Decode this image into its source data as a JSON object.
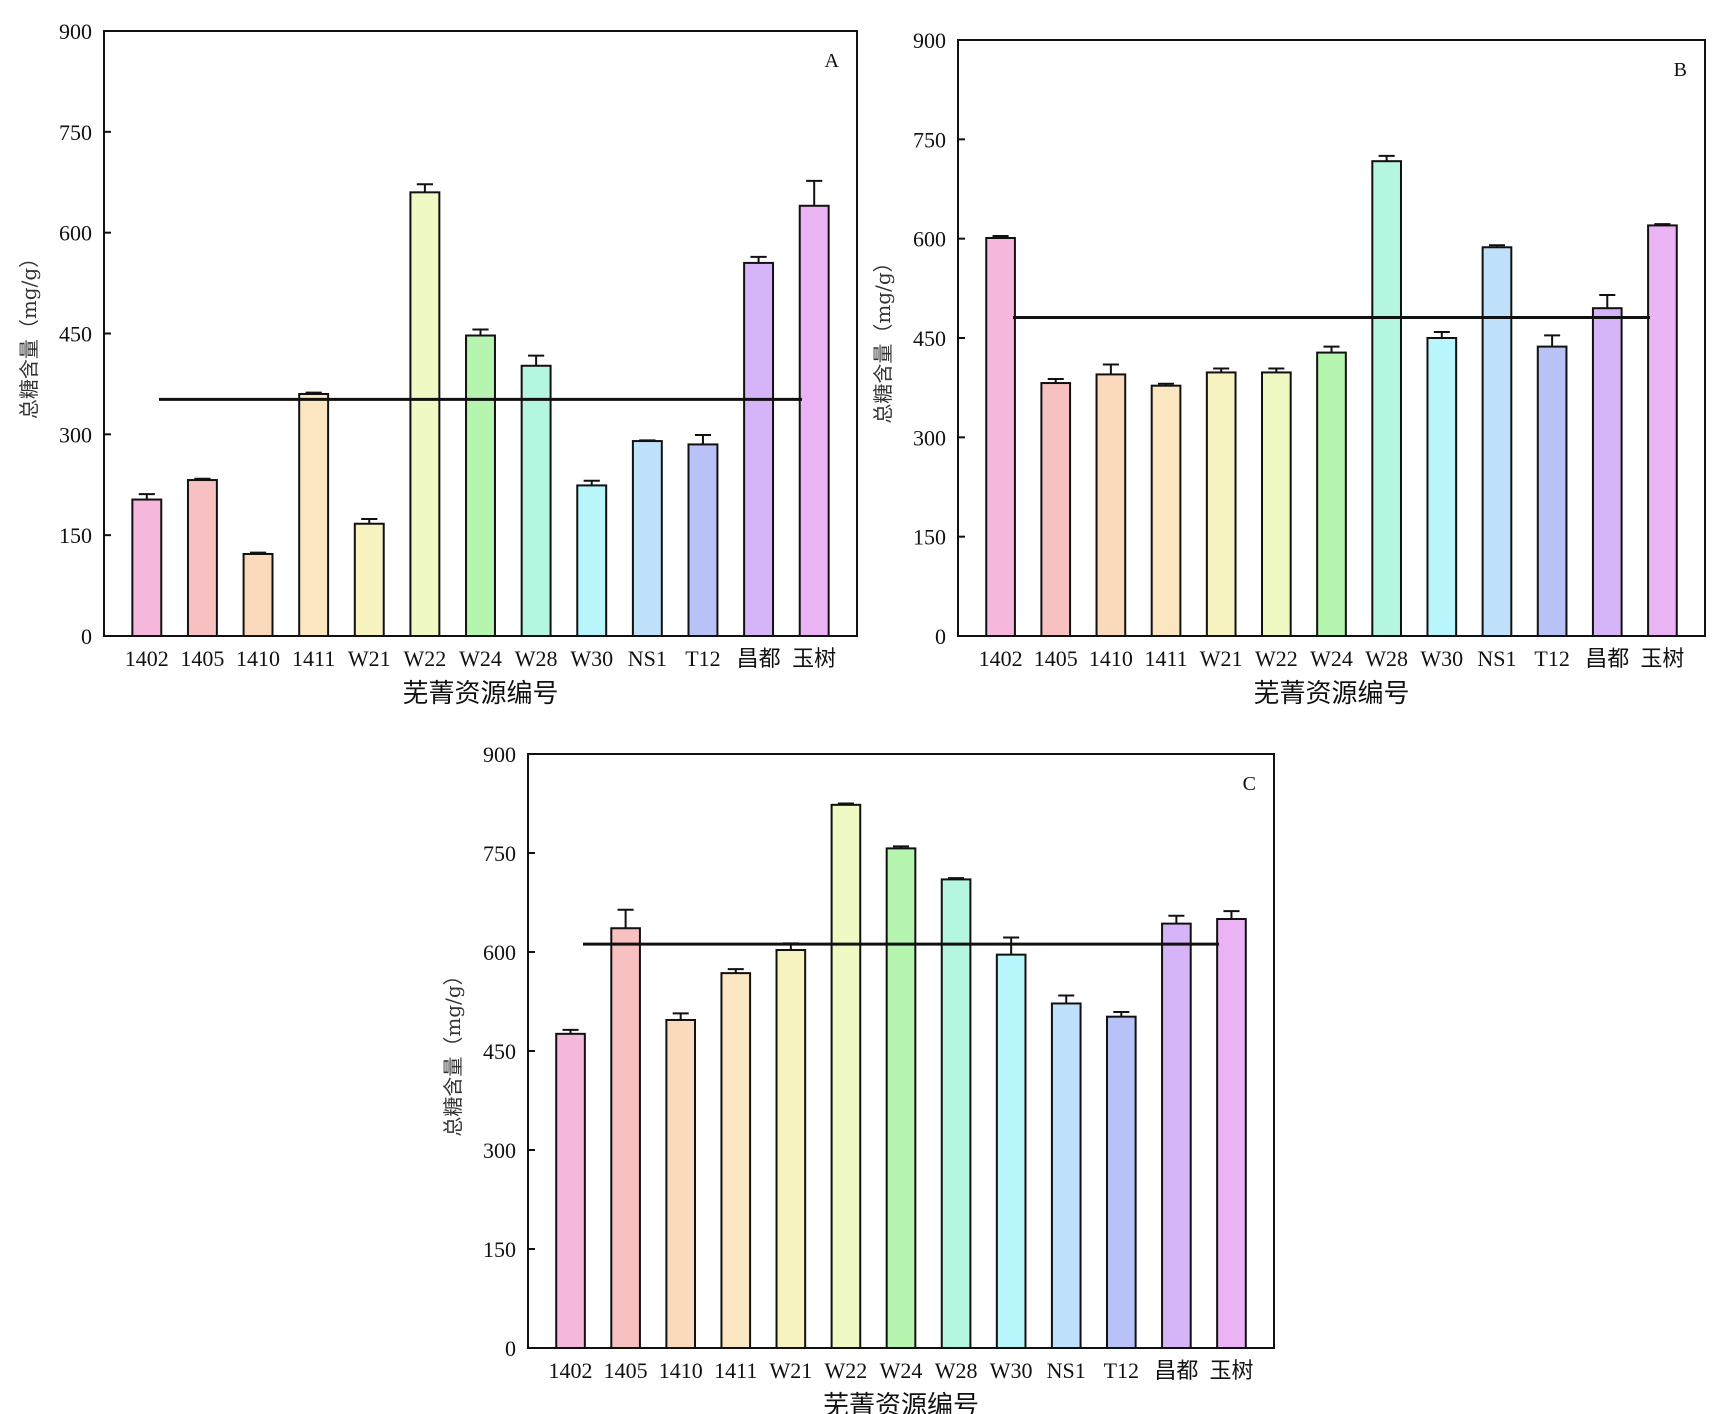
{
  "chart_data": [
    {
      "type": "bar",
      "panel": "A",
      "ylabel": "总糖含量（mg/g）",
      "xlabel": "芜菁资源编号",
      "ylim": [
        0,
        900
      ],
      "yticks": [
        "0",
        "150",
        "300",
        "450",
        "600",
        "750",
        "900"
      ],
      "categories": [
        "1402",
        "1405",
        "1410",
        "1411",
        "W21",
        "W22",
        "W24",
        "W28",
        "W30",
        "NS1",
        "T12",
        "昌都",
        "玉树"
      ],
      "values": [
        203,
        232,
        122,
        360,
        167,
        660,
        447,
        402,
        224,
        290,
        285,
        555,
        640
      ],
      "errors": [
        8,
        2,
        2,
        2,
        7,
        12,
        9,
        15,
        7,
        1,
        14,
        9,
        37
      ],
      "mean_line": 352
    },
    {
      "type": "bar",
      "panel": "B",
      "ylabel": "总糖含量（mg/g）",
      "xlabel": "芜菁资源编号",
      "ylim": [
        0,
        900
      ],
      "yticks": [
        "0",
        "150",
        "300",
        "450",
        "600",
        "750",
        "900"
      ],
      "categories": [
        "1402",
        "1405",
        "1410",
        "1411",
        "W21",
        "W22",
        "W24",
        "W28",
        "W30",
        "NS1",
        "T12",
        "昌都",
        "玉树"
      ],
      "values": [
        601,
        382,
        395,
        378,
        398,
        398,
        428,
        717,
        450,
        587,
        437,
        495,
        620
      ],
      "errors": [
        3,
        6,
        15,
        3,
        6,
        6,
        9,
        8,
        9,
        3,
        17,
        20,
        2
      ],
      "mean_line": 481
    },
    {
      "type": "bar",
      "panel": "C",
      "ylabel": "总糖含量（mg/g）",
      "xlabel": "芜菁资源编号",
      "ylim": [
        0,
        900
      ],
      "yticks": [
        "0",
        "150",
        "300",
        "450",
        "600",
        "750",
        "900"
      ],
      "categories": [
        "1402",
        "1405",
        "1410",
        "1411",
        "W21",
        "W22",
        "W24",
        "W28",
        "W30",
        "NS1",
        "T12",
        "昌都",
        "玉树"
      ],
      "values": [
        476,
        636,
        497,
        568,
        603,
        823,
        757,
        710,
        596,
        522,
        502,
        643,
        650
      ],
      "errors": [
        6,
        28,
        10,
        6,
        10,
        2,
        3,
        2,
        26,
        12,
        7,
        12,
        12
      ],
      "mean_line": 612
    }
  ],
  "colors": [
    "#f6b7dc",
    "#f7c0c1",
    "#fbd9bc",
    "#fbe6c2",
    "#f7f3c0",
    "#eef9c3",
    "#b5f5b0",
    "#b5f6e0",
    "#b8f6fb",
    "#c0e1fb",
    "#b9c2f6",
    "#d5b5f7",
    "#e9b3f4"
  ]
}
